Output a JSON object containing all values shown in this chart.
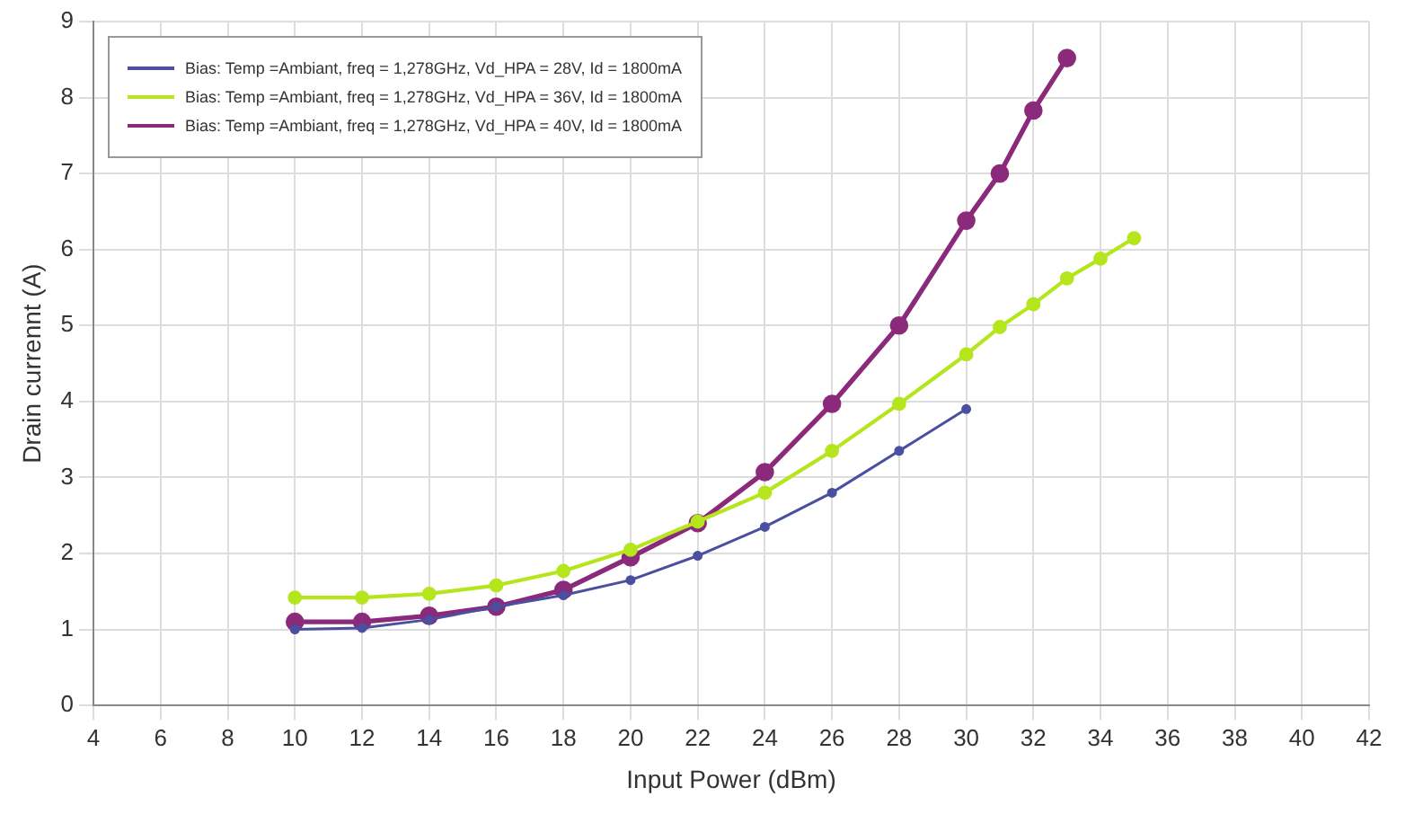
{
  "chart_data": {
    "type": "line",
    "xlabel": "Input Power (dBm)",
    "ylabel": "Drain currennt (A)",
    "xlim": [
      4,
      42
    ],
    "xticks": [
      4,
      6,
      8,
      10,
      12,
      14,
      16,
      18,
      20,
      22,
      24,
      26,
      28,
      30,
      32,
      34,
      36,
      38,
      40,
      42
    ],
    "ylim": [
      0,
      9
    ],
    "yticks": [
      0,
      1,
      2,
      3,
      4,
      5,
      6,
      7,
      8,
      9
    ],
    "grid": true,
    "legend": "top left",
    "marker": "circle",
    "line_style": "solid",
    "series": [
      {
        "name": "Bias: Temp =Ambiant, freq = 1,278GHz, Vd_HPA = 28V, Id = 1800mA",
        "color": "#4b4fa0",
        "x": [
          10,
          12,
          14,
          16,
          18,
          20,
          22,
          24,
          26,
          28,
          30
        ],
        "values": [
          1.0,
          1.02,
          1.13,
          1.3,
          1.45,
          1.65,
          1.97,
          2.35,
          2.8,
          3.35,
          3.9
        ]
      },
      {
        "name": "Bias: Temp =Ambiant, freq = 1,278GHz, Vd_HPA = 36V, Id = 1800mA",
        "color": "#b5e61d",
        "x": [
          10,
          12,
          14,
          16,
          18,
          20,
          22,
          24,
          26,
          28,
          30,
          31,
          32,
          33,
          34,
          35
        ],
        "values": [
          1.42,
          1.42,
          1.47,
          1.58,
          1.77,
          2.05,
          2.42,
          2.8,
          3.35,
          3.97,
          4.62,
          4.98,
          5.28,
          5.62,
          5.88,
          6.15
        ]
      },
      {
        "name": "Bias: Temp =Ambiant, freq = 1,278GHz, Vd_HPA = 40V, Id = 1800mA",
        "color": "#8b2a7a",
        "x": [
          10,
          12,
          14,
          16,
          18,
          20,
          22,
          24,
          26,
          28,
          30,
          31,
          32,
          33
        ],
        "values": [
          1.1,
          1.1,
          1.18,
          1.3,
          1.52,
          1.95,
          2.4,
          3.07,
          3.97,
          5.0,
          6.38,
          7.0,
          7.83,
          8.52
        ]
      }
    ]
  }
}
